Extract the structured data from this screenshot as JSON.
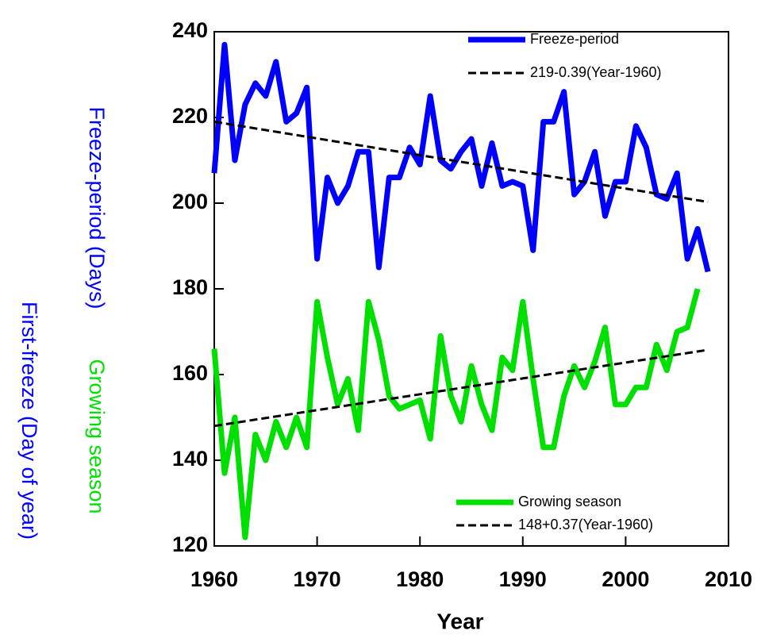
{
  "chart_data": {
    "type": "line",
    "xlabel": "Year",
    "ylabel_parts": [
      {
        "text": "First-freeze (Day of year)",
        "color": "#0000ff"
      },
      {
        "text": "Growing season",
        "color": "#00e000"
      },
      {
        "text": "Freeze-period  (Days)",
        "color": "#0000ff"
      }
    ],
    "x": [
      1960,
      1961,
      1962,
      1963,
      1964,
      1965,
      1966,
      1967,
      1968,
      1969,
      1970,
      1971,
      1972,
      1973,
      1974,
      1975,
      1976,
      1977,
      1978,
      1979,
      1980,
      1981,
      1982,
      1983,
      1984,
      1985,
      1986,
      1987,
      1988,
      1989,
      1990,
      1991,
      1992,
      1993,
      1994,
      1995,
      1996,
      1997,
      1998,
      1999,
      2000,
      2001,
      2002,
      2003,
      2004,
      2005,
      2006,
      2007,
      2008
    ],
    "series": [
      {
        "name": "Freeze-period",
        "color": "#0000ff",
        "style": "solid",
        "values": [
          207,
          237,
          210,
          223,
          228,
          225,
          233,
          219,
          221,
          227,
          187,
          206,
          200,
          204,
          212,
          212,
          185,
          206,
          206,
          213,
          209,
          225,
          210,
          208,
          212,
          215,
          204,
          214,
          204,
          205,
          204,
          189,
          219,
          219,
          226,
          202,
          205,
          212,
          197,
          205,
          205,
          218,
          213,
          202,
          201,
          207,
          187,
          194,
          184
        ]
      },
      {
        "name": "219-0.39(Year-1960)",
        "color": "#000000",
        "style": "dashed",
        "x": [
          1960,
          2008
        ],
        "values": [
          219,
          200.28
        ]
      },
      {
        "name": "Growing season",
        "color": "#00e000",
        "style": "solid",
        "values": [
          166,
          137,
          150,
          122,
          146,
          140,
          149,
          143,
          150,
          143,
          177,
          164,
          153,
          159,
          147,
          177,
          168,
          155,
          152,
          153,
          154,
          145,
          169,
          155,
          149,
          162,
          153,
          147,
          164,
          161,
          177,
          159,
          143,
          143,
          155,
          162,
          157,
          163,
          171,
          153,
          153,
          157,
          157,
          167,
          161,
          170,
          171,
          180,
          null
        ]
      },
      {
        "name": "148+0.37(Year-1960)",
        "color": "#000000",
        "style": "dashed",
        "x": [
          1960,
          2008
        ],
        "values": [
          148,
          165.76
        ]
      }
    ],
    "xlim": [
      1960,
      2010
    ],
    "xticks": [
      1960,
      1970,
      1980,
      1990,
      2000,
      2010
    ],
    "ylim": [
      120,
      240
    ],
    "yticks": [
      120,
      140,
      160,
      180,
      200,
      220,
      240
    ]
  }
}
